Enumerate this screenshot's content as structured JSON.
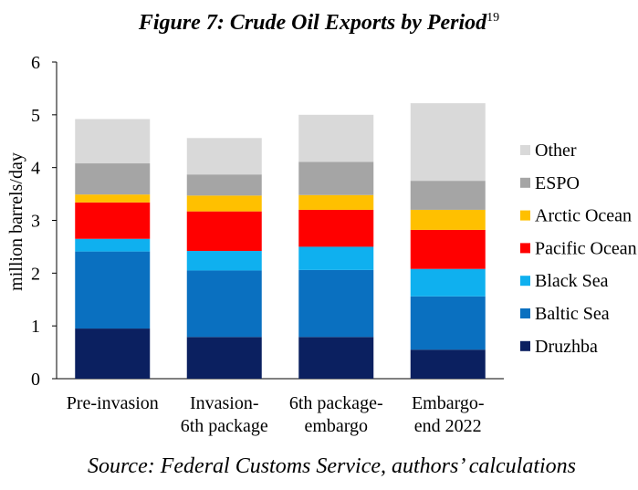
{
  "chart_data": {
    "type": "stacked-bar",
    "title": "Figure 7: Crude Oil Exports by Period",
    "title_footnote": "19",
    "ylabel": "million barrels/day",
    "xlabel": "",
    "ylim": [
      0,
      6
    ],
    "yticks": [
      "0",
      "1",
      "2",
      "3",
      "4",
      "5",
      "6"
    ],
    "grid": false,
    "legend_position": "right",
    "categories": [
      [
        "Pre-invasion"
      ],
      [
        "Invasion-",
        "6th package"
      ],
      [
        "6th package-",
        "embargo"
      ],
      [
        "Embargo-",
        "end 2022"
      ]
    ],
    "series": [
      {
        "name": "Druzhba",
        "color": "#0b2060",
        "values": [
          0.95,
          0.79,
          0.79,
          0.55
        ]
      },
      {
        "name": "Baltic Sea",
        "color": "#0a70c0",
        "values": [
          1.46,
          1.26,
          1.27,
          1.01
        ]
      },
      {
        "name": "Black Sea",
        "color": "#0fb0ef",
        "values": [
          0.24,
          0.37,
          0.44,
          0.52
        ]
      },
      {
        "name": "Pacific Ocean",
        "color": "#ff0000",
        "values": [
          0.69,
          0.75,
          0.7,
          0.74
        ]
      },
      {
        "name": "Arctic Ocean",
        "color": "#ffc000",
        "values": [
          0.15,
          0.3,
          0.28,
          0.38
        ]
      },
      {
        "name": "ESPO",
        "color": "#a5a5a5",
        "values": [
          0.59,
          0.4,
          0.63,
          0.55
        ]
      },
      {
        "name": "Other",
        "color": "#d9d9d9",
        "values": [
          0.84,
          0.69,
          0.89,
          1.47
        ]
      }
    ],
    "legend_order": [
      "Other",
      "ESPO",
      "Arctic Ocean",
      "Pacific Ocean",
      "Black Sea",
      "Baltic Sea",
      "Druzhba"
    ]
  },
  "source": "Source: Federal Customs Service, authors’ calculations"
}
